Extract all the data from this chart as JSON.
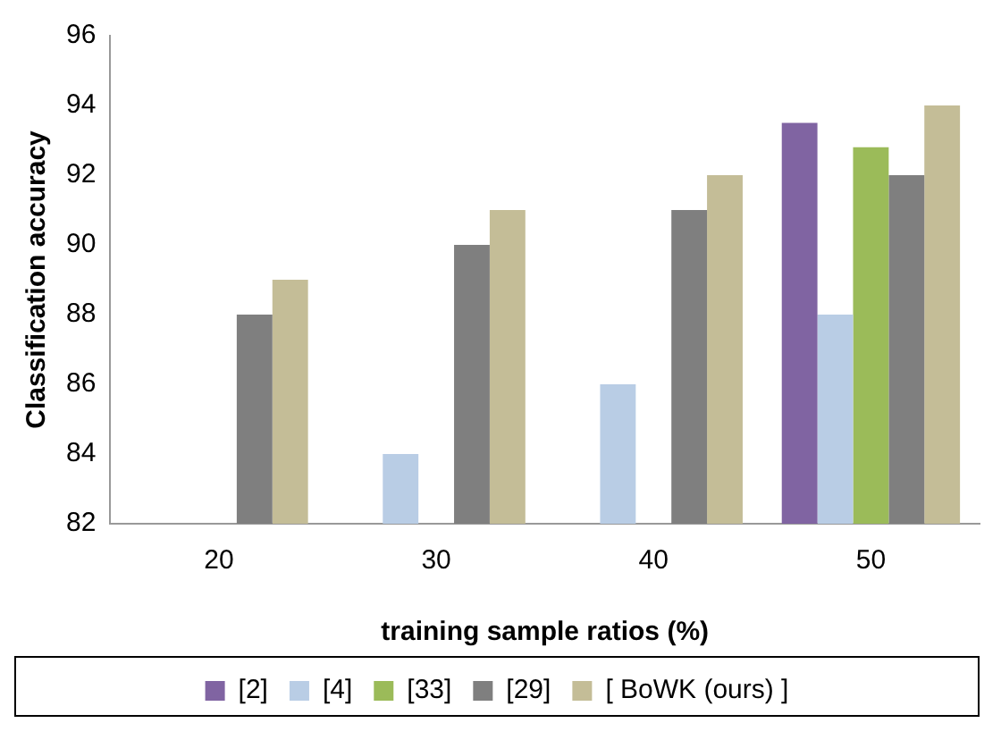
{
  "chart_data": {
    "type": "bar",
    "xlabel": "training sample ratios (%)",
    "ylabel": "Classification accuracy",
    "categories": [
      "20",
      "30",
      "40",
      "50"
    ],
    "series": [
      {
        "name": "[2]",
        "color": "#8064a2",
        "values": [
          null,
          null,
          null,
          93.5
        ]
      },
      {
        "name": "[4]",
        "color": "#b9cde5",
        "values": [
          null,
          84,
          86,
          88
        ]
      },
      {
        "name": "[33]",
        "color": "#9bbb59",
        "values": [
          null,
          null,
          null,
          92.8
        ]
      },
      {
        "name": "[29]",
        "color": "#7f7f7f",
        "values": [
          88,
          90,
          91,
          92
        ]
      },
      {
        "name": "[ BoWK (ours) ]",
        "color": "#c4bd97",
        "values": [
          89,
          91,
          92,
          94
        ]
      }
    ],
    "ylim": [
      82,
      96
    ],
    "yticks": [
      82,
      84,
      86,
      88,
      90,
      92,
      94,
      96
    ],
    "grid": false,
    "legend": "bottom"
  }
}
